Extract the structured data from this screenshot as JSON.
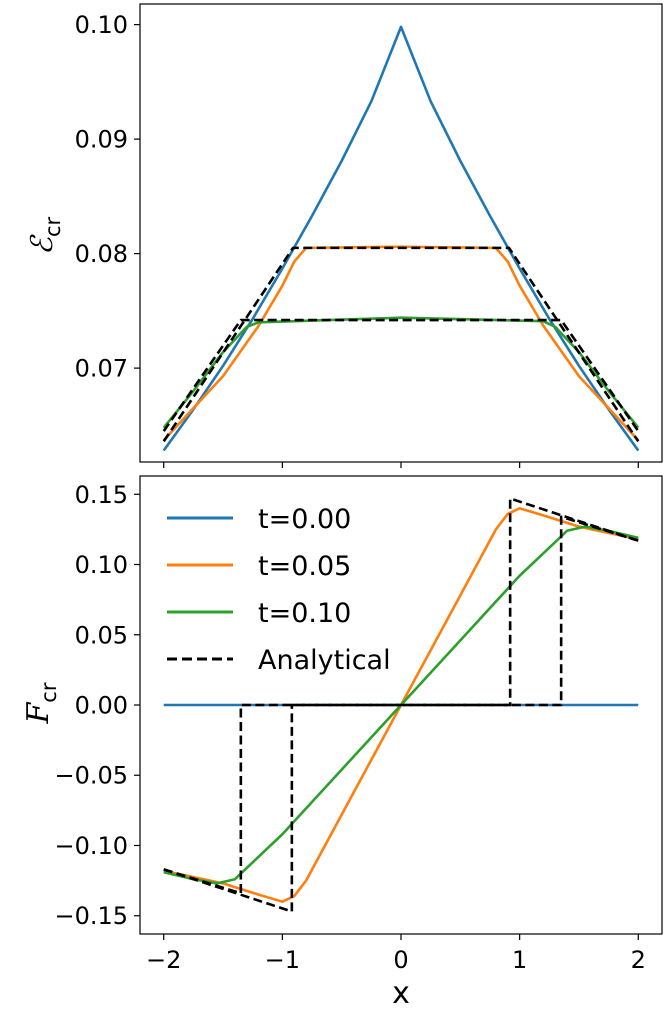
{
  "figure": {
    "xlabel": "x",
    "x_tick_labels": [
      "−2",
      "−1",
      "0",
      "1",
      "2"
    ]
  },
  "colors": {
    "t0": "#1f77b4",
    "t005": "#ff7f0e",
    "t010": "#2ca02c",
    "analytical": "#000000"
  },
  "legend": {
    "entries": [
      "t=0.00",
      "t=0.05",
      "t=0.10",
      "Analytical"
    ],
    "placement": "upper-left (bottom panel)"
  },
  "chart_data": [
    {
      "type": "line",
      "panel": "top",
      "ylabel": "ℰcr",
      "ylabel_main": "ℰ",
      "ylabel_sub": "cr",
      "xlim": [
        -2.2,
        2.2
      ],
      "ylim": [
        0.0618,
        0.1018
      ],
      "yticks": [
        0.07,
        0.08,
        0.09,
        0.1
      ],
      "ytick_labels": [
        "0.07",
        "0.08",
        "0.09",
        "0.10"
      ],
      "xticks": [
        -2,
        -1,
        0,
        1,
        2
      ],
      "grid": false,
      "series": [
        {
          "name": "t=0.00",
          "color": "#1f77b4",
          "style": "solid",
          "x": [
            -2,
            -1.75,
            -1.5,
            -1.25,
            -1,
            -0.75,
            -0.5,
            -0.25,
            0,
            0.25,
            0.5,
            0.75,
            1,
            1.25,
            1.5,
            1.75,
            2
          ],
          "y": [
            0.0628,
            0.0664,
            0.0702,
            0.0743,
            0.0787,
            0.0833,
            0.0881,
            0.0933,
            0.0998,
            0.0933,
            0.0881,
            0.0833,
            0.0787,
            0.0743,
            0.0702,
            0.0664,
            0.0628
          ]
        },
        {
          "name": "t=0.05",
          "color": "#ff7f0e",
          "style": "solid",
          "x": [
            -2,
            -1.5,
            -1.2,
            -1.0,
            -0.9,
            -0.8,
            0,
            0.8,
            0.9,
            1.0,
            1.2,
            1.5,
            2
          ],
          "y": [
            0.0637,
            0.0693,
            0.0737,
            0.0772,
            0.0793,
            0.0805,
            0.0806,
            0.0805,
            0.0793,
            0.0772,
            0.0737,
            0.0693,
            0.0637
          ]
        },
        {
          "name": "t=0.10",
          "color": "#2ca02c",
          "style": "solid",
          "x": [
            -2,
            -1.75,
            -1.5,
            -1.3,
            -1.2,
            0,
            1.2,
            1.3,
            1.5,
            1.75,
            2
          ],
          "y": [
            0.0648,
            0.068,
            0.0714,
            0.0736,
            0.074,
            0.0744,
            0.0741,
            0.0736,
            0.0714,
            0.068,
            0.0648
          ]
        },
        {
          "name": "Analytical (t=0.05)",
          "color": "#000000",
          "style": "dashed",
          "x": [
            -2,
            -0.91,
            0.91,
            2
          ],
          "y": [
            0.0636,
            0.0805,
            0.0805,
            0.0636
          ]
        },
        {
          "name": "Analytical (t=0.10)",
          "color": "#000000",
          "style": "dashed",
          "x": [
            -2,
            -1.35,
            1.35,
            2
          ],
          "y": [
            0.0645,
            0.0742,
            0.0742,
            0.0645
          ]
        }
      ]
    },
    {
      "type": "line",
      "panel": "bottom",
      "ylabel": "Fcr",
      "ylabel_main": "F",
      "ylabel_sub": "cr",
      "xlabel": "x",
      "xlim": [
        -2.2,
        2.2
      ],
      "ylim": [
        -0.163,
        0.163
      ],
      "yticks": [
        -0.15,
        -0.1,
        -0.05,
        0.0,
        0.05,
        0.1,
        0.15
      ],
      "ytick_labels": [
        "−0.15",
        "−0.10",
        "−0.05",
        "0.00",
        "0.05",
        "0.10",
        "0.15"
      ],
      "xticks": [
        -2,
        -1,
        0,
        1,
        2
      ],
      "grid": false,
      "series": [
        {
          "name": "t=0.00",
          "color": "#1f77b4",
          "style": "solid",
          "x": [
            -2,
            2
          ],
          "y": [
            0,
            0
          ]
        },
        {
          "name": "t=0.05",
          "color": "#ff7f0e",
          "style": "solid",
          "x": [
            -2,
            -1.5,
            -1.2,
            -1.0,
            -0.9,
            -0.8,
            -0.5,
            0,
            0.5,
            0.8,
            0.9,
            1.0,
            1.2,
            1.5,
            2
          ],
          "y": [
            -0.118,
            -0.127,
            -0.135,
            -0.14,
            -0.136,
            -0.125,
            -0.078,
            0,
            0.078,
            0.125,
            0.136,
            0.14,
            0.135,
            0.127,
            0.118
          ]
        },
        {
          "name": "t=0.10",
          "color": "#2ca02c",
          "style": "solid",
          "x": [
            -2,
            -1.75,
            -1.55,
            -1.4,
            -1.2,
            -1.0,
            -0.5,
            0,
            0.5,
            1.0,
            1.2,
            1.4,
            1.55,
            1.75,
            2
          ],
          "y": [
            -0.119,
            -0.124,
            -0.127,
            -0.124,
            -0.108,
            -0.092,
            -0.046,
            0,
            0.046,
            0.092,
            0.108,
            0.124,
            0.127,
            0.124,
            0.119
          ]
        },
        {
          "name": "Analytical (t=0.05)",
          "color": "#000000",
          "style": "dashed",
          "x": [
            -2,
            -0.92,
            -0.92,
            0.92,
            0.92,
            2
          ],
          "y": [
            -0.117,
            -0.147,
            0,
            0,
            0.147,
            0.117
          ]
        },
        {
          "name": "Analytical (t=0.10)",
          "color": "#000000",
          "style": "dashed",
          "x": [
            -2,
            -1.35,
            -1.35,
            1.35,
            1.35,
            2
          ],
          "y": [
            -0.117,
            -0.134,
            0,
            0,
            0.134,
            0.117
          ]
        }
      ]
    }
  ]
}
